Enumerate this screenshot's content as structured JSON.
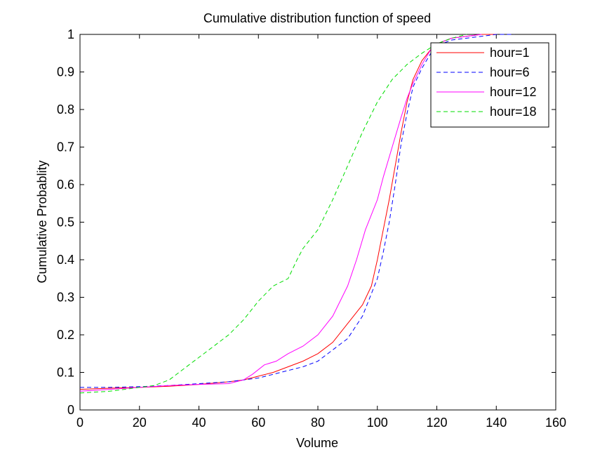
{
  "chart_data": {
    "type": "line",
    "title": "Cumulative distribution function of speed",
    "xlabel": "Volume",
    "ylabel": "Cumulative Probablity",
    "xlim": [
      0,
      160
    ],
    "ylim": [
      0,
      1
    ],
    "xticks": [
      0,
      20,
      40,
      60,
      80,
      100,
      120,
      140,
      160
    ],
    "yticks": [
      0,
      0.1,
      0.2,
      0.3,
      0.4,
      0.5,
      0.6,
      0.7,
      0.8,
      0.9,
      1
    ],
    "ytick_labels": [
      "0",
      "0.1",
      "0.2",
      "0.3",
      "0.4",
      "0.5",
      "0.6",
      "0.7",
      "0.8",
      "0.9",
      "1"
    ],
    "grid": false,
    "legend_position": "top-right",
    "series": [
      {
        "name": "hour=1",
        "color": "#ff0000",
        "dash": "solid",
        "x": [
          0,
          10,
          20,
          30,
          40,
          50,
          55,
          60,
          65,
          70,
          75,
          80,
          85,
          90,
          95,
          98,
          100,
          102,
          104,
          106,
          108,
          110,
          112,
          115,
          118,
          120,
          125,
          130,
          135,
          140
        ],
        "y": [
          0.055,
          0.058,
          0.06,
          0.063,
          0.068,
          0.075,
          0.08,
          0.09,
          0.1,
          0.115,
          0.13,
          0.15,
          0.18,
          0.23,
          0.28,
          0.33,
          0.4,
          0.48,
          0.56,
          0.65,
          0.74,
          0.82,
          0.88,
          0.93,
          0.96,
          0.975,
          0.99,
          0.995,
          1.0,
          1.0
        ]
      },
      {
        "name": "hour=6",
        "color": "#0000ff",
        "dash": "dashed",
        "x": [
          0,
          10,
          20,
          30,
          40,
          50,
          55,
          60,
          65,
          70,
          75,
          80,
          85,
          90,
          95,
          100,
          102,
          104,
          106,
          108,
          110,
          112,
          115,
          118,
          120,
          125,
          130,
          135,
          140,
          146
        ],
        "y": [
          0.06,
          0.06,
          0.062,
          0.065,
          0.07,
          0.075,
          0.08,
          0.085,
          0.095,
          0.105,
          0.115,
          0.13,
          0.16,
          0.19,
          0.25,
          0.35,
          0.42,
          0.5,
          0.6,
          0.71,
          0.79,
          0.86,
          0.91,
          0.95,
          0.97,
          0.985,
          0.99,
          0.995,
          1.0,
          1.0
        ]
      },
      {
        "name": "hour=12",
        "color": "#ff00ff",
        "dash": "solid",
        "x": [
          0,
          10,
          20,
          30,
          40,
          50,
          55,
          58,
          62,
          66,
          70,
          75,
          80,
          85,
          90,
          93,
          96,
          98,
          100,
          102,
          105,
          108,
          110,
          112,
          115,
          118,
          120,
          125,
          130,
          135
        ],
        "y": [
          0.05,
          0.055,
          0.06,
          0.065,
          0.068,
          0.07,
          0.08,
          0.095,
          0.12,
          0.13,
          0.15,
          0.17,
          0.2,
          0.25,
          0.33,
          0.4,
          0.48,
          0.52,
          0.56,
          0.62,
          0.7,
          0.78,
          0.83,
          0.87,
          0.92,
          0.96,
          0.975,
          0.99,
          0.995,
          1.0
        ]
      },
      {
        "name": "hour=18",
        "color": "#00dd00",
        "dash": "dashed",
        "x": [
          0,
          10,
          20,
          25,
          30,
          35,
          40,
          45,
          50,
          55,
          60,
          65,
          70,
          73,
          75,
          80,
          85,
          90,
          95,
          100,
          105,
          110,
          115,
          120,
          125,
          130
        ],
        "y": [
          0.045,
          0.05,
          0.06,
          0.065,
          0.08,
          0.11,
          0.14,
          0.17,
          0.2,
          0.24,
          0.29,
          0.33,
          0.35,
          0.4,
          0.43,
          0.48,
          0.56,
          0.65,
          0.74,
          0.82,
          0.88,
          0.92,
          0.95,
          0.975,
          0.99,
          1.0
        ]
      }
    ]
  }
}
